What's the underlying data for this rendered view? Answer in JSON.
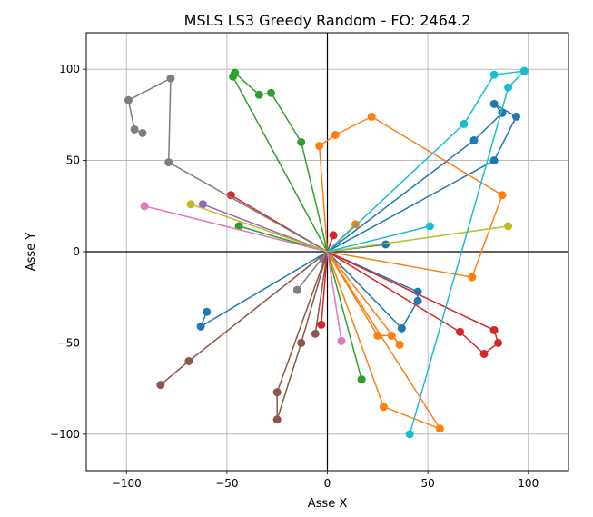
{
  "chart_data": {
    "type": "line",
    "title": "MSLS LS3 Greedy Random - FO: 2464.2",
    "xlabel": "Asse X",
    "ylabel": "Asse Y",
    "xlim": [
      -120,
      120
    ],
    "ylim": [
      -120,
      120
    ],
    "xticks": [
      -100,
      -50,
      0,
      50,
      100
    ],
    "yticks": [
      -100,
      -50,
      0,
      50,
      100
    ],
    "grid": true,
    "depot": [
      0,
      0
    ],
    "series": [
      {
        "color": "#1f77b4",
        "points": [
          [
            0,
            0
          ],
          [
            29,
            4
          ],
          [
            0,
            0
          ],
          [
            83,
            50
          ],
          [
            94,
            74
          ],
          [
            83,
            81
          ],
          [
            87,
            76
          ],
          [
            73,
            61
          ],
          [
            0,
            0
          ]
        ]
      },
      {
        "color": "#1f77b4",
        "points": [
          [
            0,
            0
          ],
          [
            45,
            -22
          ],
          [
            45,
            -27
          ],
          [
            37,
            -42
          ],
          [
            0,
            0
          ]
        ]
      },
      {
        "color": "#1f77b4",
        "points": [
          [
            0,
            0
          ],
          [
            -63,
            -41
          ],
          [
            -60,
            -33
          ]
        ]
      },
      {
        "color": "#ff7f0e",
        "points": [
          [
            0,
            0
          ],
          [
            14,
            15
          ],
          [
            0,
            0
          ],
          [
            -4,
            58
          ],
          [
            4,
            64
          ],
          [
            22,
            74
          ],
          [
            87,
            31
          ],
          [
            72,
            -14
          ],
          [
            0,
            0
          ]
        ]
      },
      {
        "color": "#ff7f0e",
        "points": [
          [
            0,
            0
          ],
          [
            25,
            -46
          ],
          [
            32,
            -46
          ],
          [
            36,
            -51
          ],
          [
            0,
            0
          ]
        ]
      },
      {
        "color": "#ff7f0e",
        "points": [
          [
            0,
            0
          ],
          [
            56,
            -97
          ],
          [
            28,
            -85
          ],
          [
            0,
            0
          ]
        ]
      },
      {
        "color": "#2ca02c",
        "points": [
          [
            0,
            0
          ],
          [
            17,
            -70
          ],
          [
            0,
            0
          ],
          [
            -44,
            14
          ],
          [
            0,
            0
          ],
          [
            -13,
            60
          ],
          [
            -28,
            87
          ],
          [
            -34,
            86
          ],
          [
            -46,
            98
          ],
          [
            -47,
            96
          ],
          [
            0,
            0
          ]
        ]
      },
      {
        "color": "#d62728",
        "points": [
          [
            0,
            0
          ],
          [
            3,
            9
          ],
          [
            0,
            0
          ],
          [
            -48,
            31
          ],
          [
            0,
            0
          ],
          [
            -3,
            -40
          ],
          [
            0,
            0
          ],
          [
            66,
            -44
          ],
          [
            78,
            -56
          ],
          [
            85,
            -50
          ],
          [
            83,
            -43
          ],
          [
            0,
            0
          ]
        ]
      },
      {
        "color": "#9467bd",
        "points": [
          [
            0,
            0
          ],
          [
            -62,
            26
          ],
          [
            0,
            0
          ],
          [
            -2,
            -4
          ],
          [
            0,
            0
          ]
        ]
      },
      {
        "color": "#8c564b",
        "points": [
          [
            0,
            0
          ],
          [
            -6,
            -45
          ],
          [
            0,
            0
          ],
          [
            -13,
            -50
          ],
          [
            -25,
            -92
          ],
          [
            -25,
            -77
          ],
          [
            0,
            0
          ],
          [
            -69,
            -60
          ],
          [
            -83,
            -73
          ]
        ]
      },
      {
        "color": "#e377c2",
        "points": [
          [
            0,
            0
          ],
          [
            -91,
            25
          ],
          [
            0,
            0
          ],
          [
            7,
            -49
          ],
          [
            0,
            0
          ]
        ]
      },
      {
        "color": "#7f7f7f",
        "points": [
          [
            0,
            0
          ],
          [
            -15,
            -21
          ],
          [
            0,
            0
          ],
          [
            -79,
            49
          ],
          [
            -78,
            95
          ],
          [
            -99,
            83
          ],
          [
            -96,
            67
          ],
          [
            -92,
            65
          ]
        ]
      },
      {
        "color": "#bcbd22",
        "points": [
          [
            0,
            0
          ],
          [
            -68,
            26
          ],
          [
            0,
            0
          ],
          [
            90,
            14
          ],
          [
            0,
            0
          ]
        ]
      },
      {
        "color": "#17becf",
        "points": [
          [
            0,
            0
          ],
          [
            51,
            14
          ],
          [
            0,
            0
          ],
          [
            68,
            70
          ],
          [
            83,
            97
          ],
          [
            98,
            99
          ],
          [
            90,
            90
          ],
          [
            41,
            -100
          ]
        ]
      }
    ]
  }
}
